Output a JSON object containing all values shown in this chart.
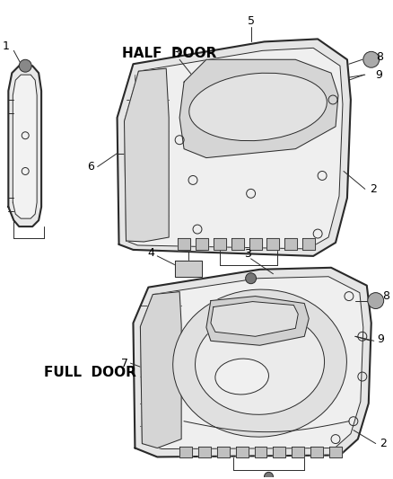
{
  "bg_color": "#ffffff",
  "line_color": "#2a2a2a",
  "half_door_label": "HALF  DOOR",
  "full_door_label": "FULL  DOOR",
  "label_fs": 9,
  "title_fs": 11
}
